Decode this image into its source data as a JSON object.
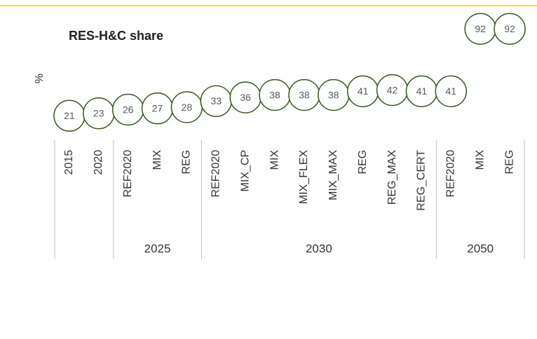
{
  "chart_data": {
    "type": "bubble-line",
    "title": "RES-H&C share",
    "y_label": "%",
    "categories": [
      "2015",
      "2020",
      "REF2020",
      "MIX",
      "REG",
      "REF2020",
      "MIX_CP",
      "MIX",
      "MIX_FLEX",
      "MIX_MAX",
      "REG",
      "REG_MAX",
      "REG_CERT",
      "REF2020",
      "MIX",
      "REG"
    ],
    "groups": [
      {
        "label": null,
        "size": 2
      },
      {
        "label": "2025",
        "size": 3
      },
      {
        "label": "2030",
        "size": 8
      },
      {
        "label": "2050",
        "size": 3
      }
    ],
    "values": [
      21,
      23,
      26,
      27,
      28,
      33,
      36,
      38,
      38,
      38,
      41,
      42,
      41,
      41,
      92,
      92
    ],
    "color": "#3a5a23",
    "ylim": [
      0,
      115
    ]
  }
}
